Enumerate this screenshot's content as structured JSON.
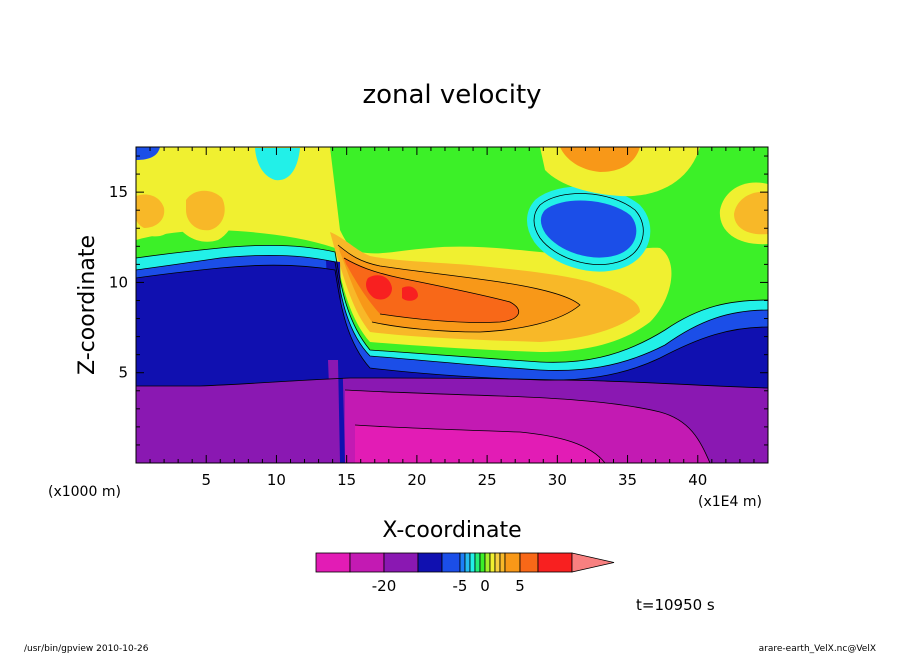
{
  "chart_data": {
    "type": "heatmap",
    "title": "zonal velocity",
    "xlabel": "X-coordinate",
    "ylabel": "Z-coordinate",
    "x_unit": "(x1E4 m)",
    "y_unit": "(x1000 m)",
    "xlim": [
      0,
      45
    ],
    "ylim": [
      0,
      17.5
    ],
    "x_ticks": [
      5,
      10,
      15,
      20,
      25,
      30,
      35,
      40
    ],
    "y_ticks": [
      5,
      10,
      15
    ],
    "colorbar": {
      "levels": [
        -30,
        -25,
        -20,
        -15,
        -10,
        -5,
        -4,
        -3,
        -2,
        -1,
        0,
        1,
        2,
        3,
        4,
        5,
        10,
        15,
        20
      ],
      "colors": [
        "#e21cb5",
        "#c31ab3",
        "#8a18b2",
        "#1010b0",
        "#1b4ee8",
        "#1d7ff7",
        "#25bdf0",
        "#22f0e8",
        "#24f07a",
        "#3cf028",
        "#a6f02a",
        "#f0f030",
        "#f8d040",
        "#f8b828",
        "#f89818",
        "#f86818",
        "#f82020",
        "#f88080"
      ],
      "tick_labels": [
        {
          "value": -20,
          "label": "-20"
        },
        {
          "value": -5,
          "label": "-5"
        },
        {
          "value": 0,
          "label": "0"
        },
        {
          "value": 5,
          "label": "5"
        }
      ]
    },
    "annotations": {
      "time": "t=10950 s",
      "program": "/usr/bin/gpview  2010-10-26",
      "source": "arare-earth_VelX.nc@VelX"
    }
  }
}
